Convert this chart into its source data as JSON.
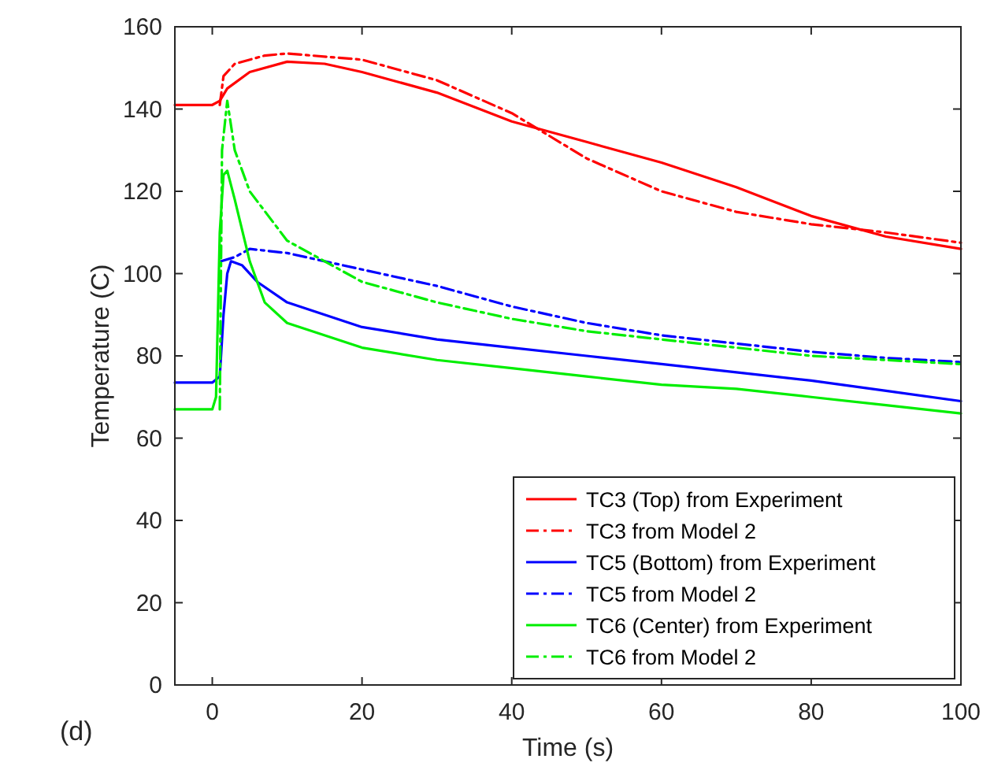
{
  "chart_data": {
    "type": "line",
    "xlabel": "Time (s)",
    "ylabel": "Temperature (C)",
    "annotations": [
      "(d)"
    ],
    "xlim": [
      -5,
      100
    ],
    "xticks": [
      0,
      20,
      40,
      60,
      80,
      100
    ],
    "ylim": [
      0,
      160
    ],
    "yticks": [
      0,
      20,
      40,
      60,
      80,
      100,
      120,
      140,
      160
    ],
    "grid": false,
    "legend": "bottom right",
    "series": [
      {
        "name": "TC3 (Top) from Experiment",
        "color": "#ff0000",
        "line_style": "solid",
        "x": [
          -5,
          0,
          1,
          2,
          5,
          10,
          15,
          20,
          30,
          40,
          50,
          60,
          70,
          80,
          90,
          100
        ],
        "values": [
          141,
          141,
          142,
          145,
          149,
          151.5,
          151,
          149,
          144,
          137,
          132,
          127,
          121,
          114,
          109,
          106
        ]
      },
      {
        "name": "TC3 from Model 2",
        "color": "#ff0000",
        "line_style": "dashdot",
        "x": [
          1,
          1.5,
          3,
          7,
          10,
          20,
          30,
          40,
          50,
          60,
          70,
          80,
          90,
          100
        ],
        "values": [
          141,
          148,
          151,
          153,
          153.5,
          152,
          147,
          139,
          128,
          120,
          115,
          112,
          110,
          107.5
        ]
      },
      {
        "name": "TC5 (Bottom) from Experiment",
        "color": "#0000ff",
        "line_style": "solid",
        "x": [
          -5,
          0,
          1,
          1.5,
          2,
          2.5,
          4,
          6,
          10,
          20,
          30,
          40,
          50,
          60,
          70,
          80,
          90,
          100
        ],
        "values": [
          73.5,
          73.5,
          75,
          90,
          100,
          103,
          102,
          98,
          93,
          87,
          84,
          82,
          80,
          78,
          76,
          74,
          71.5,
          69
        ]
      },
      {
        "name": "TC5 from Model 2",
        "color": "#0000ff",
        "line_style": "dashdot",
        "x": [
          1.2,
          3,
          5,
          10,
          20,
          30,
          40,
          50,
          60,
          70,
          80,
          90,
          100
        ],
        "values": [
          103,
          104,
          106,
          105,
          101,
          97,
          92,
          88,
          85,
          83,
          81,
          79.5,
          78.5
        ]
      },
      {
        "name": "TC6 (Center) from Experiment",
        "color": "#00ee00",
        "line_style": "solid",
        "x": [
          -5,
          0,
          0.5,
          1,
          1.5,
          2,
          3,
          5,
          7,
          10,
          20,
          30,
          40,
          50,
          60,
          70,
          80,
          90,
          100
        ],
        "values": [
          67,
          67,
          70,
          110,
          124,
          125,
          118,
          103,
          93,
          88,
          82,
          79,
          77,
          75,
          73,
          72,
          70,
          68,
          66
        ]
      },
      {
        "name": "TC6 from Model 2",
        "color": "#00ee00",
        "line_style": "dashdot",
        "x": [
          1,
          1.3,
          2,
          3,
          5,
          10,
          20,
          30,
          40,
          50,
          60,
          70,
          80,
          90,
          100
        ],
        "values": [
          67,
          130,
          142,
          130,
          120,
          108,
          98,
          93,
          89,
          86,
          84,
          82,
          80,
          79,
          78
        ]
      }
    ]
  }
}
